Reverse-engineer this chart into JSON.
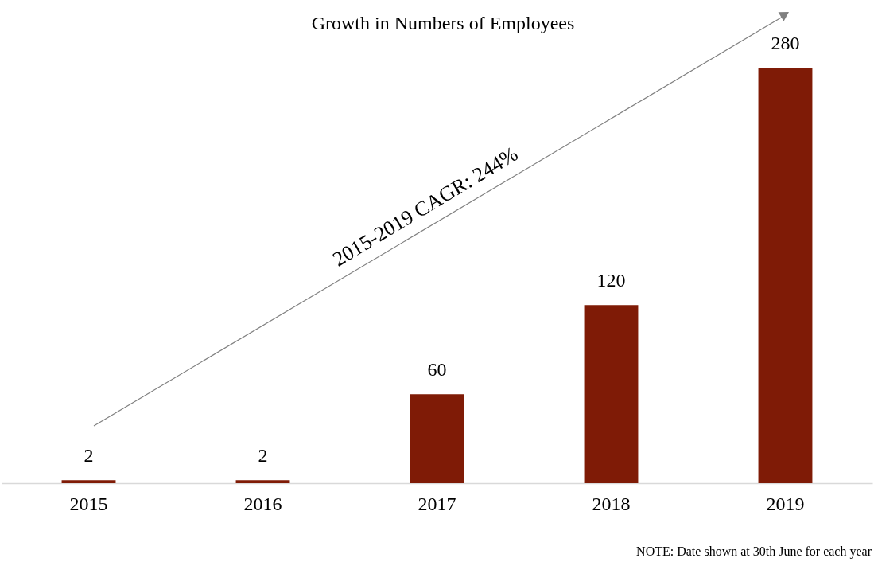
{
  "chart_data": {
    "type": "bar",
    "title": "Growth in Numbers of Employees",
    "categories": [
      "2015",
      "2016",
      "2017",
      "2018",
      "2019"
    ],
    "values": [
      2,
      2,
      60,
      120,
      280
    ],
    "color": "#7f1b06",
    "data_labels": true,
    "tick_labels": "x",
    "annotations": [
      "2015-2019 CAGR: 244%",
      "NOTE: Date shown at 30th June for each year"
    ]
  }
}
